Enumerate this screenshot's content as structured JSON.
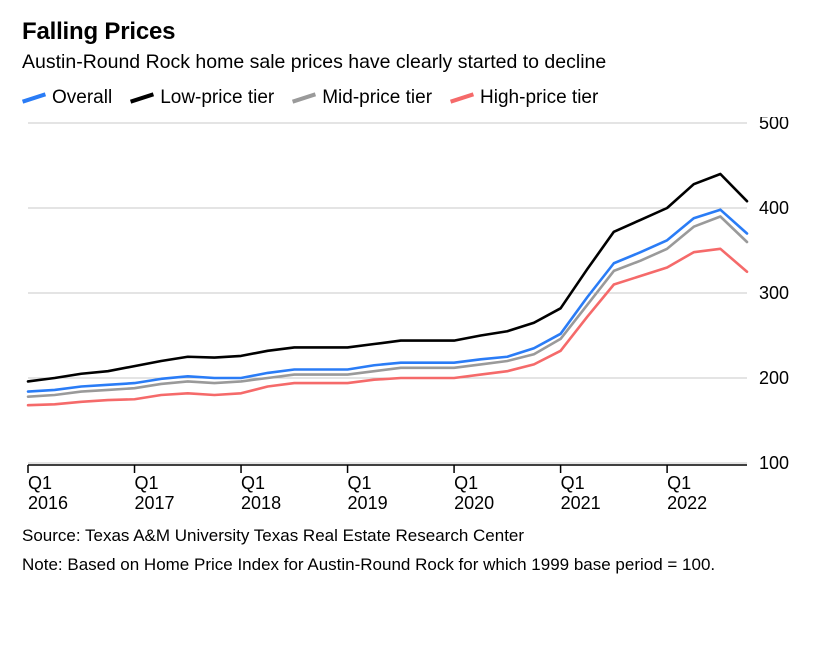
{
  "title": "Falling Prices",
  "subtitle": "Austin-Round Rock home sale prices have clearly started to decline",
  "source_line": "Source: Texas A&M University Texas Real Estate Research Center",
  "note_line": "Note: Based on Home Price Index for Austin-Round Rock for which 1999 base period = 100.",
  "chart": {
    "type": "line",
    "background_color": "#ffffff",
    "grid_color": "#c9c9c9",
    "axis_color": "#000000",
    "text_color": "#000000",
    "line_width": 2.6,
    "title_fontsize": 24,
    "subtitle_fontsize": 19.5,
    "tick_fontsize": 18,
    "footer_fontsize": 17,
    "xlim": [
      2016.0,
      2022.75
    ],
    "ylim": [
      100,
      500
    ],
    "yticks": [
      100,
      200,
      300,
      400,
      500
    ],
    "xticks": [
      2016,
      2017,
      2018,
      2019,
      2020,
      2021,
      2022
    ],
    "xtick_top_label": "Q1",
    "xtick_bottom_labels": [
      "2016",
      "2017",
      "2018",
      "2019",
      "2020",
      "2021",
      "2022"
    ],
    "x_points": [
      2016.0,
      2016.25,
      2016.5,
      2016.75,
      2017.0,
      2017.25,
      2017.5,
      2017.75,
      2018.0,
      2018.25,
      2018.5,
      2018.75,
      2019.0,
      2019.25,
      2019.5,
      2019.75,
      2020.0,
      2020.25,
      2020.5,
      2020.75,
      2021.0,
      2021.25,
      2021.5,
      2021.75,
      2022.0,
      2022.25,
      2022.5,
      2022.75
    ],
    "series": [
      {
        "key": "overall",
        "label": "Overall",
        "color": "#2a7cf6",
        "values": [
          184,
          186,
          190,
          192,
          194,
          199,
          202,
          200,
          200,
          206,
          210,
          210,
          210,
          215,
          218,
          218,
          218,
          222,
          225,
          235,
          252,
          295,
          335,
          348,
          362,
          388,
          398,
          370
        ]
      },
      {
        "key": "low_tier",
        "label": "Low-price tier",
        "color": "#000000",
        "values": [
          196,
          200,
          205,
          208,
          214,
          220,
          225,
          224,
          226,
          232,
          236,
          236,
          236,
          240,
          244,
          244,
          244,
          250,
          255,
          265,
          282,
          328,
          372,
          386,
          400,
          428,
          440,
          408
        ]
      },
      {
        "key": "mid_tier",
        "label": "Mid-price tier",
        "color": "#9a9a9a",
        "values": [
          178,
          180,
          184,
          186,
          188,
          193,
          196,
          194,
          196,
          200,
          204,
          204,
          204,
          208,
          212,
          212,
          212,
          216,
          220,
          228,
          246,
          286,
          326,
          338,
          352,
          378,
          390,
          360
        ]
      },
      {
        "key": "high_tier",
        "label": "High-price tier",
        "color": "#f56a6a",
        "values": [
          168,
          169,
          172,
          174,
          175,
          180,
          182,
          180,
          182,
          190,
          194,
          194,
          194,
          198,
          200,
          200,
          200,
          204,
          208,
          216,
          232,
          272,
          310,
          320,
          330,
          348,
          352,
          325
        ]
      }
    ]
  },
  "legend_order": [
    "overall",
    "low_tier",
    "mid_tier",
    "high_tier"
  ]
}
